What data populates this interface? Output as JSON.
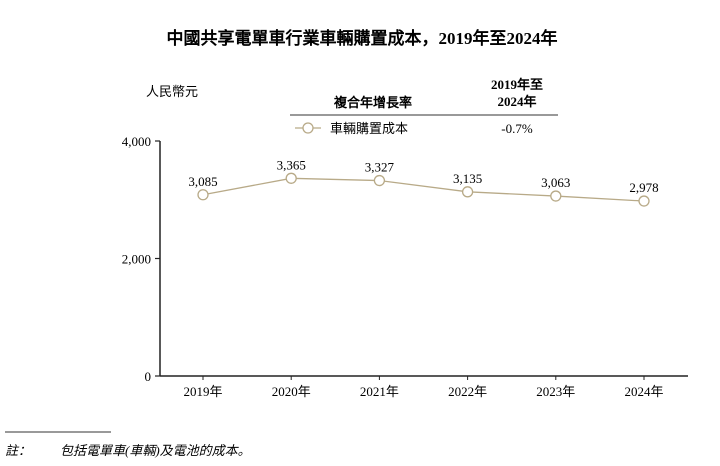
{
  "chart_data": {
    "type": "line",
    "title": "中國共享電單車行業車輛購置成本，2019年至2024年",
    "ylabel": "人民幣元",
    "xlabel": "",
    "categories": [
      "2019年",
      "2020年",
      "2021年",
      "2022年",
      "2023年",
      "2024年"
    ],
    "series": [
      {
        "name": "車輛購置成本",
        "values": [
          3085,
          3365,
          3327,
          3135,
          3063,
          2978
        ],
        "labels": [
          "3,085",
          "3,365",
          "3,327",
          "3,135",
          "3,063",
          "2,978"
        ],
        "cagr": "-0.7%"
      }
    ],
    "ylim": [
      0,
      4000
    ],
    "yticks": [
      0,
      2000,
      4000
    ],
    "ytick_labels": [
      "0",
      "2,000",
      "4,000"
    ],
    "grid": false,
    "legend_placement": "top",
    "legend_header": {
      "cagr_label": "複合年增長率",
      "period_line1": "2019年至",
      "period_line2": "2024年"
    },
    "line_color": "#b8aa88",
    "note_label": "註：",
    "note_text": "包括電單車(車輛)及電池的成本。"
  }
}
